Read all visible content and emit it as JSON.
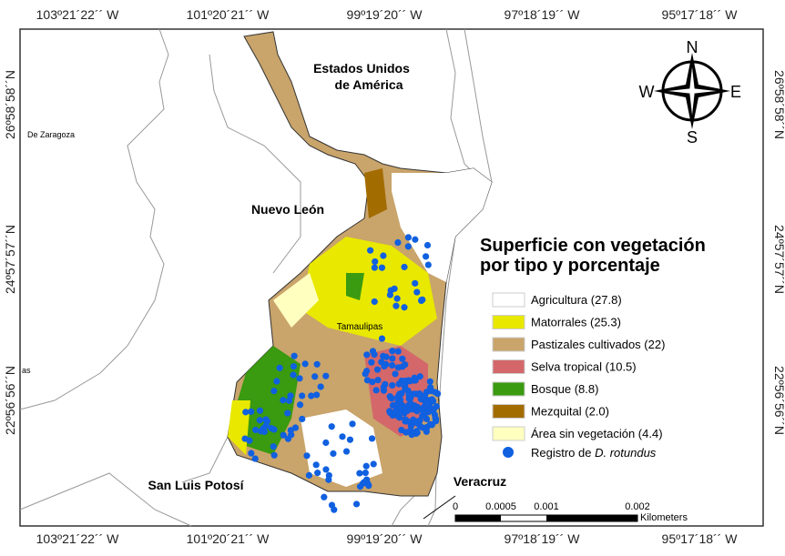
{
  "coordinates": {
    "top": [
      "103º21´22´´ W",
      "101º20´21´´ W",
      "99º19´20´´ W",
      "97º18´19´´ W",
      "95º17´18´´ W"
    ],
    "bottom": [
      "103º21´22´´ W",
      "101º20´21´´ W",
      "99º19´20´´ W",
      "97º18´19´´ W",
      "95º17´18´´ W"
    ],
    "left": [
      "26º58´58´´N",
      "24º57´57´´N",
      "22º56´56´´N"
    ],
    "right": [
      "26º58´58´´N",
      "24º57´57´´N",
      "22º56´56´´N"
    ]
  },
  "places": {
    "usa": [
      "Estados Unidos",
      "de América"
    ],
    "nuevo_leon": "Nuevo León",
    "san_luis_potosi": "San Luis Potosí",
    "veracruz": "Veracruz",
    "tamaulipas": "Tamaulipas",
    "zaragoza": "De Zaragoza",
    "cut_label": "as"
  },
  "compass": {
    "n": "N",
    "s": "S",
    "e": "E",
    "w": "W"
  },
  "legend": {
    "title": [
      "Superficie con vegetación",
      "por tipo y porcentaje"
    ],
    "items": [
      {
        "label": "Agricultura (27.8)",
        "color": "#ffffff"
      },
      {
        "label": "Matorrales (25.3)",
        "color": "#e8e800"
      },
      {
        "label": "Pastizales cultivados (22)",
        "color": "#c9a46b"
      },
      {
        "label": "Selva tropical (10.5)",
        "color": "#d4676a"
      },
      {
        "label": "Bosque (8.8)",
        "color": "#3a9a10"
      },
      {
        "label": "Mezquital (2.0)",
        "color": "#a36c00"
      },
      {
        "label": "Área sin vegetación (4.4)",
        "color": "#ffffc0"
      }
    ],
    "record": {
      "prefix": "Registro de ",
      "species": "D. rotundus",
      "color": "#1060e0"
    }
  },
  "scale": {
    "ticks": [
      "0",
      "0.0005",
      "0.001",
      "0.002"
    ],
    "unit": "Kilometers"
  }
}
